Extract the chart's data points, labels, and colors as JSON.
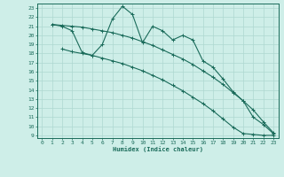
{
  "xlabel": "Humidex (Indice chaleur)",
  "bg_color": "#ceeee8",
  "line_color": "#1a6b5a",
  "grid_color": "#aed8d0",
  "xlim": [
    -0.5,
    23.5
  ],
  "ylim": [
    8.7,
    23.5
  ],
  "yticks": [
    9,
    10,
    11,
    12,
    13,
    14,
    15,
    16,
    17,
    18,
    19,
    20,
    21,
    22,
    23
  ],
  "xticks": [
    0,
    1,
    2,
    3,
    4,
    5,
    6,
    7,
    8,
    9,
    10,
    11,
    12,
    13,
    14,
    15,
    16,
    17,
    18,
    19,
    20,
    21,
    22,
    23
  ],
  "line1_x": [
    1,
    2,
    3,
    4,
    5,
    6,
    7,
    8,
    9,
    10,
    11,
    12,
    13,
    14,
    15,
    16,
    17,
    18,
    19,
    20,
    21,
    22,
    23
  ],
  "line1_y": [
    21.2,
    21.1,
    21.0,
    20.9,
    20.7,
    20.5,
    20.3,
    20.0,
    19.7,
    19.3,
    18.9,
    18.4,
    17.9,
    17.4,
    16.8,
    16.1,
    15.4,
    14.6,
    13.7,
    12.8,
    11.8,
    10.5,
    9.3
  ],
  "line2_x": [
    2,
    3,
    4,
    5,
    6,
    7,
    8,
    9,
    10,
    11,
    12,
    13,
    14,
    15,
    16,
    17,
    18,
    19,
    20,
    21,
    22,
    23
  ],
  "line2_y": [
    18.5,
    18.2,
    18.0,
    17.8,
    19.0,
    21.8,
    23.2,
    22.3,
    19.2,
    21.0,
    20.5,
    19.5,
    20.0,
    19.5,
    17.2,
    16.5,
    15.2,
    13.8,
    12.8,
    11.0,
    10.2,
    9.2
  ],
  "line3_x": [
    1,
    2,
    3,
    4,
    5,
    6,
    7,
    8,
    9,
    10,
    11,
    12,
    13,
    14,
    15,
    16,
    17,
    18,
    19,
    20,
    21,
    22,
    23
  ],
  "line3_y": [
    21.2,
    21.0,
    20.5,
    18.1,
    17.8,
    17.5,
    17.2,
    16.9,
    16.5,
    16.1,
    15.6,
    15.1,
    14.5,
    13.9,
    13.2,
    12.5,
    11.7,
    10.8,
    9.9,
    9.2,
    9.1,
    9.0,
    9.0
  ]
}
